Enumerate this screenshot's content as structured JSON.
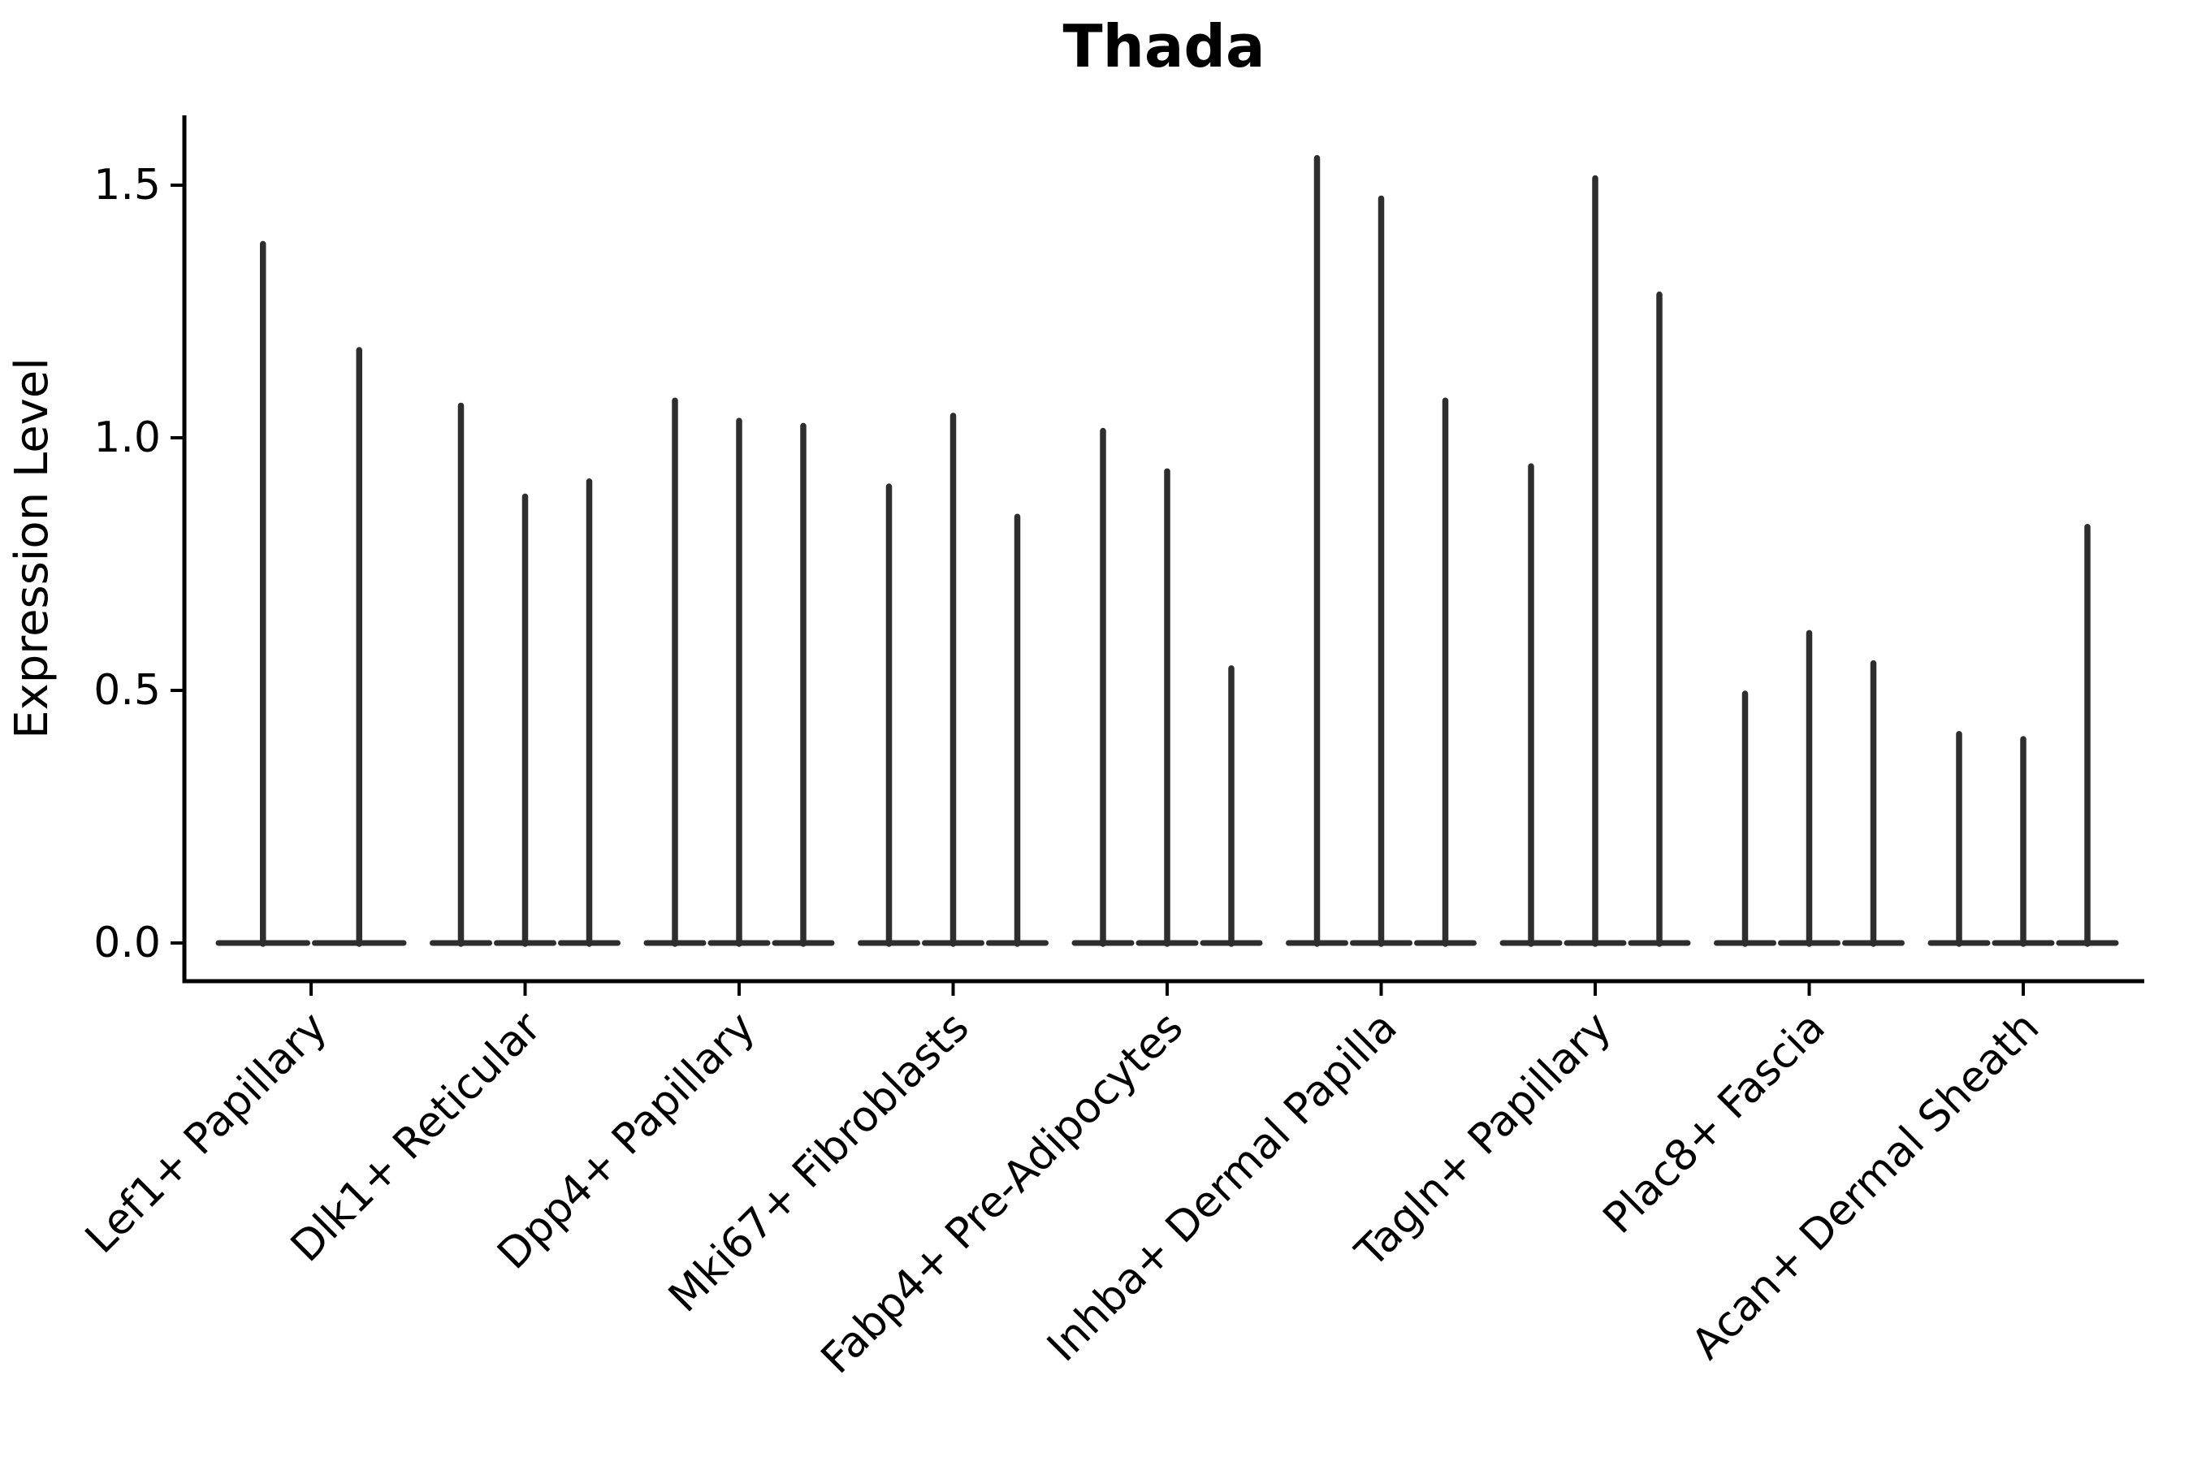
{
  "chart_data": {
    "type": "violin",
    "title": "Thada",
    "ylabel": "Expression Level",
    "xlabel": "",
    "ytick_labels": [
      "0.0",
      "0.5",
      "1.0",
      "1.5"
    ],
    "ytick_values": [
      0.0,
      0.5,
      1.0,
      1.5
    ],
    "ylim": [
      -0.075,
      1.64
    ],
    "grid": false,
    "legend_position": "none",
    "categories": [
      "Lef1+ Papillary",
      "Dlk1+ Reticular",
      "Dpp4+ Papillary",
      "Mki67+ Fibroblasts",
      "Fabp4+ Pre-Adipocytes",
      "Inhba+ Dermal Papilla",
      "Tagln+ Papillary",
      "Plac8+ Fascia",
      "Acan+ Dermal Sheath"
    ],
    "violins_per_category": [
      2,
      3,
      3,
      3,
      3,
      3,
      3,
      3,
      3
    ],
    "violin_max_values": [
      [
        1.39,
        1.18
      ],
      [
        1.07,
        0.89,
        0.92
      ],
      [
        1.08,
        1.04,
        1.03
      ],
      [
        0.91,
        1.05,
        0.85
      ],
      [
        1.02,
        0.94,
        0.55
      ],
      [
        1.56,
        1.48,
        1.08
      ],
      [
        0.95,
        1.52,
        1.29
      ],
      [
        0.5,
        0.62,
        0.56
      ],
      [
        0.42,
        0.41,
        0.83
      ]
    ],
    "violin_shape_note": "needle-thin violins: wide flat base at 0 expression, thin spike up to max value",
    "violin_color": "#2e2e2e",
    "axis_color": "#000000"
  }
}
